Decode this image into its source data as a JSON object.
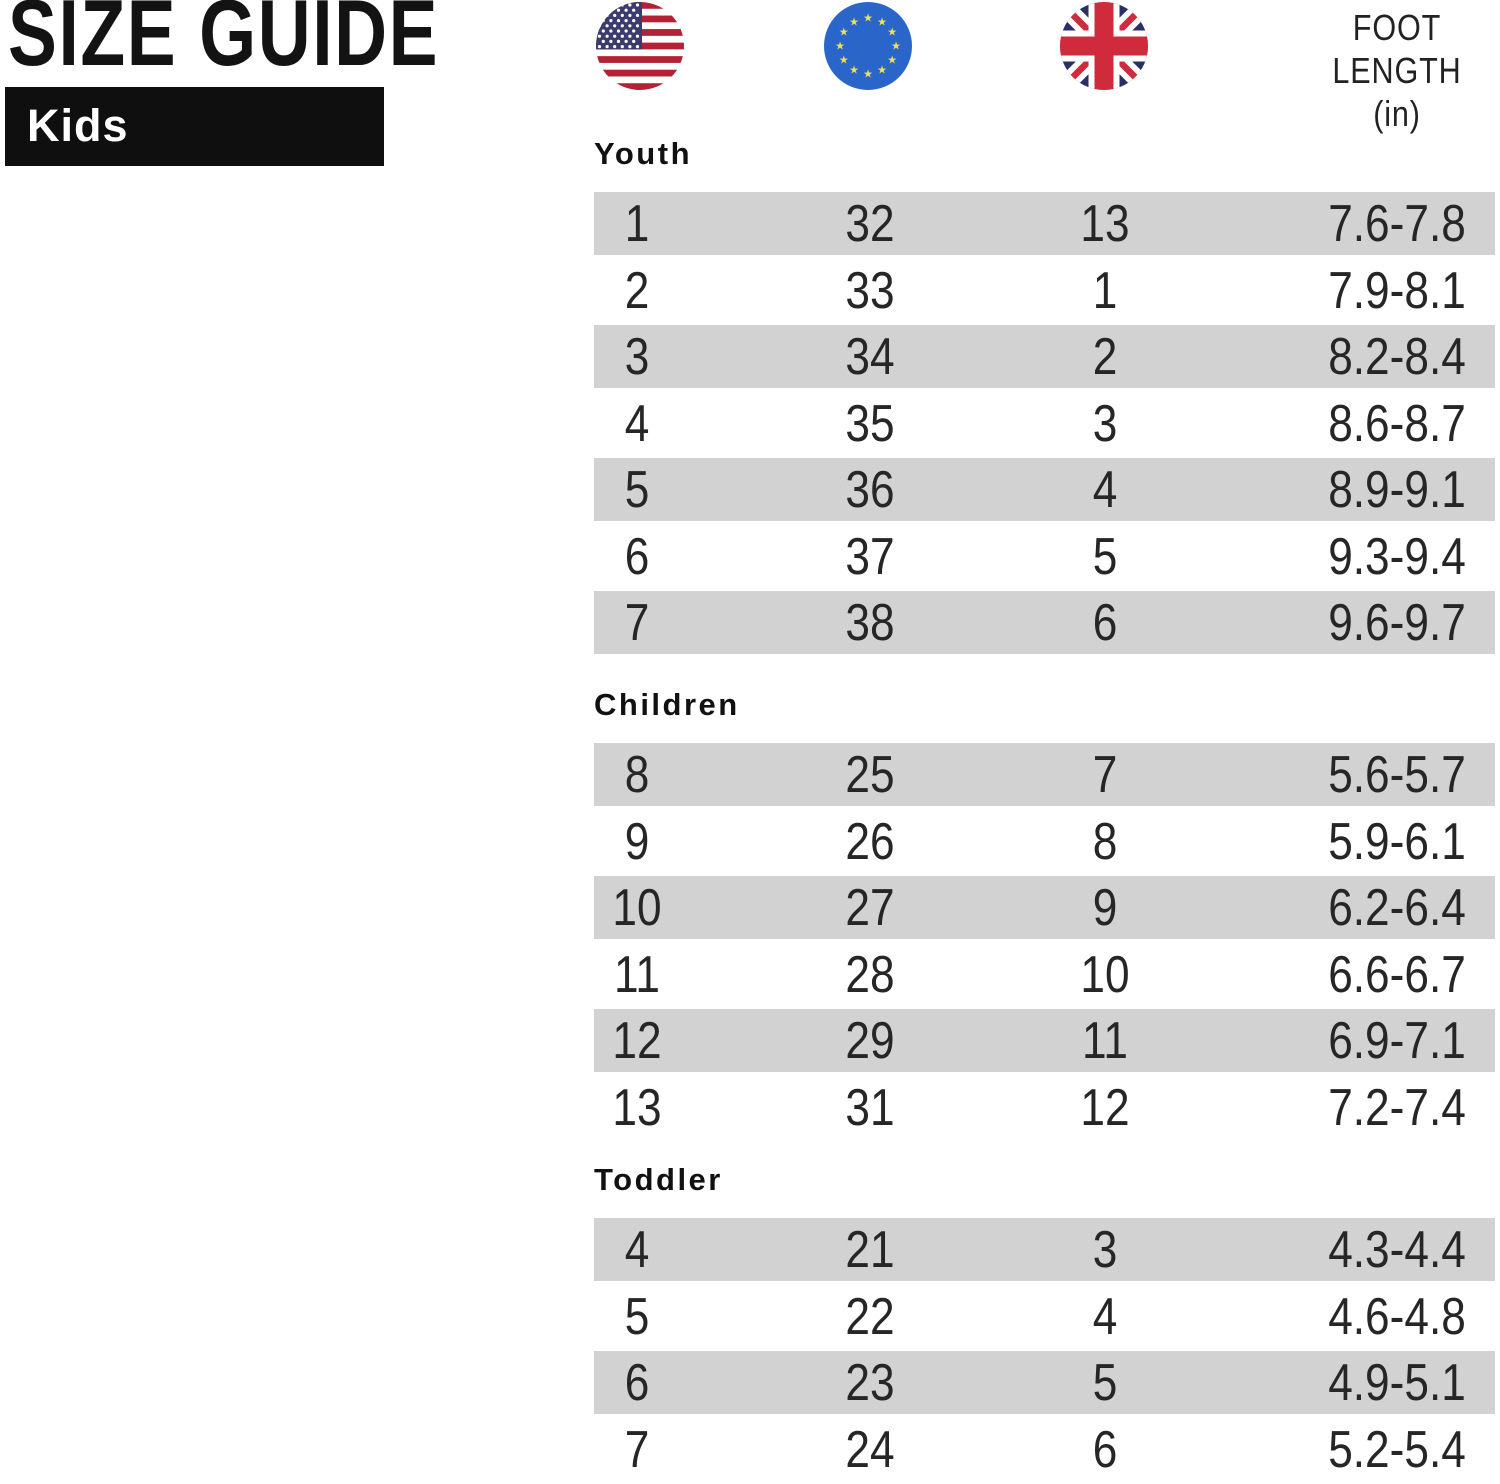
{
  "page": {
    "title": "SIZE GUIDE",
    "category": "Kids"
  },
  "table_header": {
    "us_flag": "us-flag",
    "eu_flag": "eu-flag",
    "uk_flag": "uk-flag",
    "foot_length_lines": [
      "FOOT",
      "LENGTH",
      "(in)"
    ]
  },
  "chart_data": {
    "type": "table",
    "title": "SIZE GUIDE",
    "subtitle": "Kids",
    "columns": [
      "US",
      "EU",
      "UK",
      "FOOT LENGTH (in)"
    ],
    "sections": [
      {
        "label": "Youth",
        "rows": [
          [
            "1",
            "32",
            "13",
            "7.6-7.8"
          ],
          [
            "2",
            "33",
            "1",
            "7.9-8.1"
          ],
          [
            "3",
            "34",
            "2",
            "8.2-8.4"
          ],
          [
            "4",
            "35",
            "3",
            "8.6-8.7"
          ],
          [
            "5",
            "36",
            "4",
            "8.9-9.1"
          ],
          [
            "6",
            "37",
            "5",
            "9.3-9.4"
          ],
          [
            "7",
            "38",
            "6",
            "9.6-9.7"
          ]
        ]
      },
      {
        "label": "Children",
        "rows": [
          [
            "8",
            "25",
            "7",
            "5.6-5.7"
          ],
          [
            "9",
            "26",
            "8",
            "5.9-6.1"
          ],
          [
            "10",
            "27",
            "9",
            "6.2-6.4"
          ],
          [
            "11",
            "28",
            "10",
            "6.6-6.7"
          ],
          [
            "12",
            "29",
            "11",
            "6.9-7.1"
          ],
          [
            "13",
            "31",
            "12",
            "7.2-7.4"
          ]
        ]
      },
      {
        "label": "Toddler",
        "rows": [
          [
            "4",
            "21",
            "3",
            "4.3-4.4"
          ],
          [
            "5",
            "22",
            "4",
            "4.6-4.8"
          ],
          [
            "6",
            "23",
            "5",
            "4.9-5.1"
          ],
          [
            "7",
            "24",
            "6",
            "5.2-5.4"
          ]
        ]
      }
    ]
  },
  "colors": {
    "row_stripe": "#d2d2d2",
    "text": "#262626",
    "banner_bg": "#0f0f0f",
    "banner_text": "#ffffff",
    "us_flag_red": "#b22234",
    "us_flag_blue": "#3c3b6e",
    "eu_flag_blue": "#2a66c9",
    "eu_flag_star": "#efe24e",
    "uk_flag_navy": "#2b2f63",
    "uk_flag_red": "#cf2b3c"
  }
}
